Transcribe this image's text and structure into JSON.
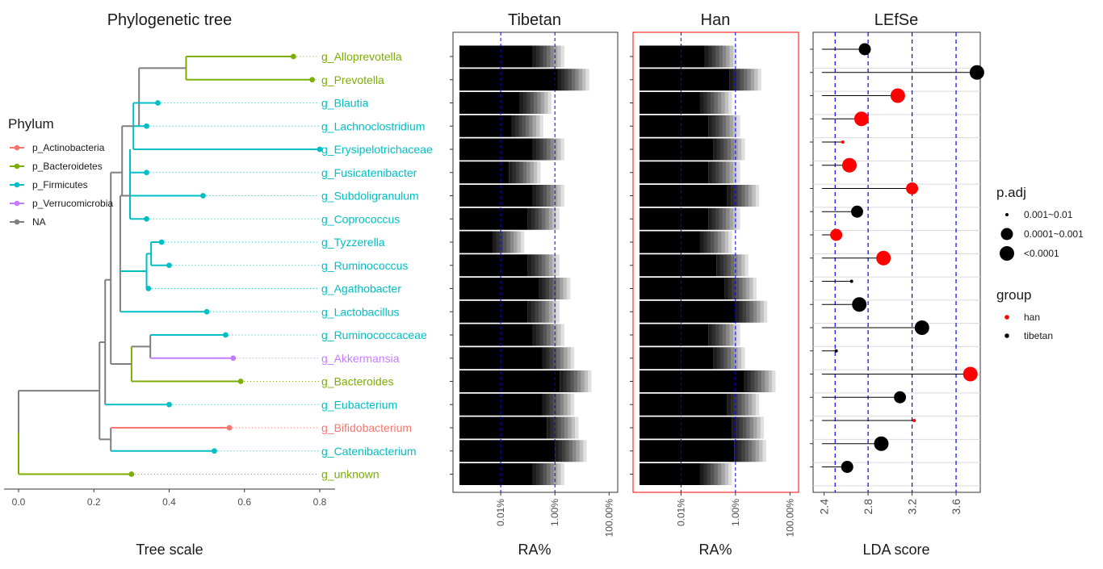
{
  "colors": {
    "p_Actinobacteria": "#F8766D",
    "p_Bacteroidetes": "#7CAE00",
    "p_Firmicutes": "#00BFC4",
    "p_Verrucomicrobia": "#C77CFF",
    "NA": "#7F7F7F",
    "han": "#FF0000",
    "tibetan": "#000000",
    "threshold_line": "#0000FF",
    "han_panel_border": "#FF0000"
  },
  "tree_panel": {
    "title": "Phylogenetic tree",
    "xlabel": "Tree scale",
    "ticks": [
      "0.0",
      "0.2",
      "0.4",
      "0.6",
      "0.8"
    ]
  },
  "legend_phylum": {
    "title": "Phylum",
    "items": [
      "p_Actinobacteria",
      "p_Bacteroidetes",
      "p_Firmicutes",
      "p_Verrucomicrobia",
      "NA"
    ]
  },
  "legend_padj": {
    "title": "p.adj",
    "items": [
      "0.001~0.01",
      "0.0001~0.001",
      "<0.0001"
    ]
  },
  "legend_group": {
    "title": "group",
    "items": [
      "han",
      "tibetan"
    ]
  },
  "tibetan_panel": {
    "title": "Tibetan",
    "xlabel": "RA%",
    "ticks": [
      "0.01%",
      "1.00%",
      "100.00%"
    ]
  },
  "han_panel": {
    "title": "Han",
    "xlabel": "RA%",
    "ticks": [
      "0.01%",
      "1.00%",
      "100.00%"
    ]
  },
  "lefse_panel": {
    "title": "LEfSe",
    "xlabel": "LDA score",
    "ticks": [
      "2.4",
      "2.8",
      "3.2",
      "3.6"
    ]
  },
  "chart_data": [
    {
      "type": "tree",
      "title": "Phylogenetic tree",
      "xlabel": "Tree scale",
      "xlim": [
        0,
        0.85
      ],
      "taxa": [
        {
          "label": "g_Alloprevotella",
          "phylum": "p_Bacteroidetes",
          "tip": 0.73
        },
        {
          "label": "g_Prevotella",
          "phylum": "p_Bacteroidetes",
          "tip": 0.78
        },
        {
          "label": "g_Blautia",
          "phylum": "p_Firmicutes",
          "tip": 0.37
        },
        {
          "label": "g_Lachnoclostridium",
          "phylum": "p_Firmicutes",
          "tip": 0.34
        },
        {
          "label": "g_Erysipelotrichaceae",
          "phylum": "p_Firmicutes",
          "tip": 0.8
        },
        {
          "label": "g_Fusicatenibacter",
          "phylum": "p_Firmicutes",
          "tip": 0.34
        },
        {
          "label": "g_Subdoligranulum",
          "phylum": "p_Firmicutes",
          "tip": 0.49
        },
        {
          "label": "g_Coprococcus",
          "phylum": "p_Firmicutes",
          "tip": 0.34
        },
        {
          "label": "g_Tyzzerella",
          "phylum": "p_Firmicutes",
          "tip": 0.38
        },
        {
          "label": "g_Ruminococcus",
          "phylum": "p_Firmicutes",
          "tip": 0.4
        },
        {
          "label": "g_Agathobacter",
          "phylum": "p_Firmicutes",
          "tip": 0.345
        },
        {
          "label": "g_Lactobacillus",
          "phylum": "p_Firmicutes",
          "tip": 0.5
        },
        {
          "label": "g_Ruminococcaceae",
          "phylum": "p_Firmicutes",
          "tip": 0.55
        },
        {
          "label": "g_Akkermansia",
          "phylum": "p_Verrucomicrobia",
          "tip": 0.57
        },
        {
          "label": "g_Bacteroides",
          "phylum": "p_Bacteroidetes",
          "tip": 0.59
        },
        {
          "label": "g_Eubacterium",
          "phylum": "p_Firmicutes",
          "tip": 0.4
        },
        {
          "label": "g_Bifidobacterium",
          "phylum": "p_Actinobacteria",
          "tip": 0.56
        },
        {
          "label": "g_Catenibacterium",
          "phylum": "p_Firmicutes",
          "tip": 0.52
        },
        {
          "label": "g_unknown",
          "phylum": "p_Bacteroidetes",
          "tip": 0.3
        }
      ]
    },
    {
      "type": "heatmap",
      "title": "Tibetan",
      "xlabel": "RA%",
      "scale": "log10",
      "xlim_percent": [
        0.0003,
        120
      ],
      "reference_lines_percent": [
        0.01,
        1.0
      ],
      "max_relative_abundance_percent": [
        3,
        25,
        1.0,
        0.5,
        3,
        0.4,
        3,
        2,
        0.1,
        2,
        5,
        2,
        3,
        7,
        30,
        7,
        10,
        20,
        3
      ]
    },
    {
      "type": "heatmap",
      "title": "Han",
      "xlabel": "RA%",
      "scale": "log10",
      "xlim_percent": [
        0.0003,
        120
      ],
      "reference_lines_percent": [
        0.01,
        1.0
      ],
      "max_relative_abundance_percent": [
        1.5,
        12,
        1.0,
        2,
        3,
        2,
        10,
        2,
        1,
        4,
        8,
        20,
        2,
        3,
        40,
        10,
        15,
        18,
        1
      ]
    },
    {
      "type": "scatter",
      "title": "LEfSe",
      "xlabel": "LDA score",
      "xlim": [
        2.3,
        3.82
      ],
      "reference_lines": [
        2.5,
        2.8,
        3.2,
        3.6
      ],
      "points": [
        {
          "taxon": "g_Alloprevotella",
          "lda": 2.77,
          "group": "tibetan",
          "p_adj": "0.0001~0.001"
        },
        {
          "taxon": "g_Prevotella",
          "lda": 3.79,
          "group": "tibetan",
          "p_adj": "<0.0001"
        },
        {
          "taxon": "g_Blautia",
          "lda": 3.07,
          "group": "han",
          "p_adj": "<0.0001"
        },
        {
          "taxon": "g_Lachnoclostridium",
          "lda": 2.74,
          "group": "han",
          "p_adj": "<0.0001"
        },
        {
          "taxon": "g_Erysipelotrichaceae",
          "lda": 2.57,
          "group": "han",
          "p_adj": "0.001~0.01"
        },
        {
          "taxon": "g_Fusicatenibacter",
          "lda": 2.63,
          "group": "han",
          "p_adj": "<0.0001"
        },
        {
          "taxon": "g_Subdoligranulum",
          "lda": 3.2,
          "group": "han",
          "p_adj": "0.0001~0.001"
        },
        {
          "taxon": "g_Coprococcus",
          "lda": 2.7,
          "group": "tibetan",
          "p_adj": "0.0001~0.001"
        },
        {
          "taxon": "g_Tyzzerella",
          "lda": 2.51,
          "group": "han",
          "p_adj": "0.0001~0.001"
        },
        {
          "taxon": "g_Ruminococcus",
          "lda": 2.94,
          "group": "han",
          "p_adj": "<0.0001"
        },
        {
          "taxon": "g_Agathobacter",
          "lda": 2.65,
          "group": "tibetan",
          "p_adj": "0.001~0.01"
        },
        {
          "taxon": "g_Lactobacillus",
          "lda": 2.72,
          "group": "tibetan",
          "p_adj": "<0.0001"
        },
        {
          "taxon": "g_Ruminococcaceae",
          "lda": 3.29,
          "group": "tibetan",
          "p_adj": "<0.0001"
        },
        {
          "taxon": "g_Akkermansia",
          "lda": 2.51,
          "group": "tibetan",
          "p_adj": "0.001~0.01"
        },
        {
          "taxon": "g_Bacteroides",
          "lda": 3.73,
          "group": "han",
          "p_adj": "<0.0001"
        },
        {
          "taxon": "g_Eubacterium",
          "lda": 3.09,
          "group": "tibetan",
          "p_adj": "0.0001~0.001"
        },
        {
          "taxon": "g_Bifidobacterium",
          "lda": 3.22,
          "group": "han",
          "p_adj": "0.001~0.01"
        },
        {
          "taxon": "g_Catenibacterium",
          "lda": 2.92,
          "group": "tibetan",
          "p_adj": "<0.0001"
        },
        {
          "taxon": "g_unknown",
          "lda": 2.61,
          "group": "tibetan",
          "p_adj": "0.0001~0.001"
        }
      ]
    }
  ]
}
